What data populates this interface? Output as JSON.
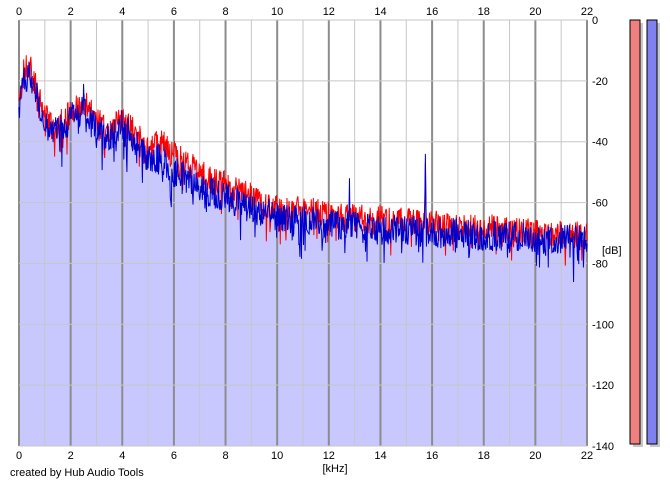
{
  "footer": {
    "credit": "created by Hub Audio Tools"
  },
  "colors": {
    "background": "#ffffff",
    "fill": "#c8c8ff",
    "grid_minor": "#c6c6c6",
    "grid_major": "#8c8c8c",
    "left_channel": "#ff0000",
    "right_channel": "#0000cc",
    "meter_left": "#f08080",
    "meter_right": "#8080f0",
    "meter_shadow": "#c8c8c8"
  },
  "chart_data": {
    "type": "line",
    "title": "",
    "xlabel": "[kHz]",
    "ylabel": "[dB]",
    "xlim": [
      0,
      22
    ],
    "ylim": [
      -140,
      0
    ],
    "x_ticks": [
      "0",
      "2",
      "4",
      "6",
      "8",
      "10",
      "12",
      "14",
      "16",
      "18",
      "20",
      "22"
    ],
    "y_ticks": [
      "0",
      "-20",
      "-40",
      "-60",
      "-80",
      "-100",
      "-120",
      "-140"
    ],
    "grid": true,
    "legend": "none",
    "envelope": {
      "x": [
        0,
        0.2,
        0.4,
        0.6,
        1,
        1.5,
        2,
        2.5,
        3,
        3.5,
        4,
        4.5,
        5,
        5.5,
        6,
        6.5,
        7,
        7.5,
        8,
        8.5,
        9,
        9.5,
        10,
        11,
        12,
        13,
        14,
        15,
        16,
        17,
        18,
        19,
        20,
        21,
        22
      ],
      "red": [
        -28,
        -16,
        -15,
        -20,
        -32,
        -35,
        -30,
        -27,
        -33,
        -36,
        -32,
        -37,
        -42,
        -40,
        -44,
        -47,
        -50,
        -53,
        -54,
        -56,
        -58,
        -60,
        -62,
        -62,
        -64,
        -65,
        -65,
        -66,
        -67,
        -68,
        -68,
        -69,
        -70,
        -70,
        -71
      ],
      "blue": [
        -30,
        -19,
        -18,
        -22,
        -35,
        -37,
        -32,
        -29,
        -36,
        -38,
        -34,
        -40,
        -46,
        -45,
        -50,
        -52,
        -55,
        -57,
        -58,
        -60,
        -62,
        -63,
        -65,
        -66,
        -67,
        -68,
        -69,
        -69,
        -70,
        -70,
        -71,
        -71,
        -72,
        -72,
        -72
      ]
    },
    "peaks": [
      {
        "channel": "blue",
        "x": 2.5,
        "y": -21
      },
      {
        "channel": "blue",
        "x": 12.8,
        "y": -52
      },
      {
        "channel": "blue",
        "x": 15.75,
        "y": -44
      },
      {
        "channel": "red",
        "x": 15.75,
        "y": -47
      }
    ],
    "meters": {
      "left": 1.0,
      "right": 1.0
    }
  }
}
